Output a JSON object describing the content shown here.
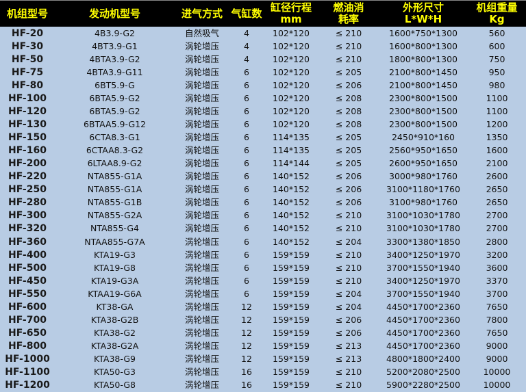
{
  "headers": [
    {
      "line1": "机组型号",
      "line2": ""
    },
    {
      "line1": "发动机型号",
      "line2": ""
    },
    {
      "line1": "进气方式",
      "line2": ""
    },
    {
      "line1": "气缸数",
      "line2": ""
    },
    {
      "line1": "缸径行程",
      "line2": "mm"
    },
    {
      "line1": "燃油消",
      "line2": "耗率"
    },
    {
      "line1": "外形尺寸",
      "line2": "L*W*H"
    },
    {
      "line1": "机组重量",
      "line2": "Kg"
    }
  ],
  "rows": [
    [
      "HF-20",
      "4B3.9-G2",
      "自然吸气",
      "4",
      "102*120",
      "≤ 210",
      "1600*750*1300",
      "560"
    ],
    [
      "HF-30",
      "4BT3.9-G1",
      "涡轮增压",
      "4",
      "102*120",
      "≤ 210",
      "1600*800*1300",
      "600"
    ],
    [
      "HF-50",
      "4BTA3.9-G2",
      "涡轮增压",
      "4",
      "102*120",
      "≤ 210",
      "1800*800*1300",
      "750"
    ],
    [
      "HF-75",
      "4BTA3.9-G11",
      "涡轮增压",
      "6",
      "102*120",
      "≤ 205",
      "2100*800*1450",
      "950"
    ],
    [
      "HF-80",
      "6BT5.9-G",
      "涡轮增压",
      "6",
      "102*120",
      "≤ 206",
      "2100*800*1450",
      "980"
    ],
    [
      "HF-100",
      "6BTA5.9-G2",
      "涡轮增压",
      "6",
      "102*120",
      "≤ 208",
      "2300*800*1500",
      "1100"
    ],
    [
      "HF-120",
      "6BTA5.9-G2",
      "涡轮增压",
      "6",
      "102*120",
      "≤ 208",
      "2300*800*1500",
      "1100"
    ],
    [
      "HF-130",
      "6BTAA5.9-G12",
      "涡轮增压",
      "6",
      "102*120",
      "≤ 208",
      "2300*800*1500",
      "1200"
    ],
    [
      "HF-150",
      "6CTA8.3-G1",
      "涡轮增压",
      "6",
      "114*135",
      "≤ 205",
      "2450*910*160",
      "1350"
    ],
    [
      "HF-160",
      "6CTAA8.3-G2",
      "涡轮增压",
      "6",
      "114*135",
      "≤ 205",
      "2560*950*1650",
      "1600"
    ],
    [
      "HF-200",
      "6LTAA8.9-G2",
      "涡轮增压",
      "6",
      "114*144",
      "≤ 205",
      "2600*950*1650",
      "2100"
    ],
    [
      "HF-220",
      "NTA855-G1A",
      "涡轮增压",
      "6",
      "140*152",
      "≤ 206",
      "3000*980*1760",
      "2600"
    ],
    [
      "HF-250",
      "NTA855-G1A",
      "涡轮增压",
      "6",
      "140*152",
      "≤ 206",
      "3100*1180*1760",
      "2650"
    ],
    [
      "HF-280",
      "NTA855-G1B",
      "涡轮增压",
      "6",
      "140*152",
      "≤ 206",
      "3100*980*1760",
      "2650"
    ],
    [
      "HF-300",
      "NTA855-G2A",
      "涡轮增压",
      "6",
      "140*152",
      "≤ 210",
      "3100*1030*1780",
      "2700"
    ],
    [
      "HF-320",
      "NTA855-G4",
      "涡轮增压",
      "6",
      "140*152",
      "≤ 210",
      "3100*1030*1780",
      "2700"
    ],
    [
      "HF-360",
      "NTAA855-G7A",
      "涡轮增压",
      "6",
      "140*152",
      "≤ 204",
      "3300*1380*1850",
      "2800"
    ],
    [
      "HF-400",
      "KTA19-G3",
      "涡轮增压",
      "6",
      "159*159",
      "≤ 210",
      "3400*1250*1970",
      "3200"
    ],
    [
      "HF-500",
      "KTA19-G8",
      "涡轮增压",
      "6",
      "159*159",
      "≤ 210",
      "3700*1550*1940",
      "3600"
    ],
    [
      "HF-450",
      "KTA19-G3A",
      "涡轮增压",
      "6",
      "159*159",
      "≤ 210",
      "3400*1250*1970",
      "3370"
    ],
    [
      "HF-550",
      "KTAA19-G6A",
      "涡轮增压",
      "6",
      "159*159",
      "≤ 204",
      "3700*1550*1940",
      "3700"
    ],
    [
      "HF-600",
      "KT38-GA",
      "涡轮增压",
      "12",
      "159*159",
      "≤ 204",
      "4450*1700*2360",
      "7650"
    ],
    [
      "HF-700",
      "KTA38-G2B",
      "涡轮增压",
      "12",
      "159*159",
      "≤ 206",
      "4450*1700*2360",
      "7800"
    ],
    [
      "HF-650",
      "KTA38-G2",
      "涡轮增压",
      "12",
      "159*159",
      "≤ 206",
      "4450*1700*2360",
      "7650"
    ],
    [
      "HF-800",
      "KTA38-G2A",
      "涡轮增压",
      "12",
      "159*159",
      "≤ 213",
      "4450*1700*2360",
      "9000"
    ],
    [
      "HF-1000",
      "KTA38-G9",
      "涡轮增压",
      "12",
      "159*159",
      "≤ 213",
      "4800*1800*2400",
      "9000"
    ],
    [
      "HF-1100",
      "KTA50-G3",
      "涡轮增压",
      "16",
      "159*159",
      "≤ 210",
      "5200*2080*2500",
      "10000"
    ],
    [
      "HF-1200",
      "KTA50-G8",
      "涡轮增压",
      "16",
      "159*159",
      "≤ 210",
      "5900*2280*2500",
      "10000"
    ]
  ],
  "colors": {
    "header_bg": "#000000",
    "header_text": "#ffff00",
    "body_bg": "#b8cce4"
  }
}
